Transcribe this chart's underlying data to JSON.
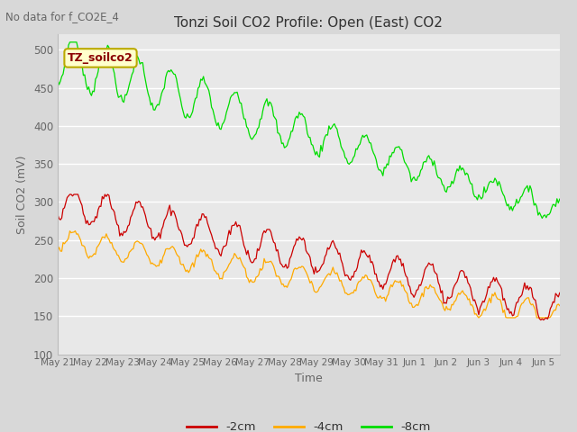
{
  "title": "Tonzi Soil CO2 Profile: Open (East) CO2",
  "top_left_text": "No data for f_CO2E_4",
  "xlabel": "Time",
  "ylabel": "Soil CO2 (mV)",
  "ylim": [
    100,
    520
  ],
  "yticks": [
    100,
    150,
    200,
    250,
    300,
    350,
    400,
    450,
    500
  ],
  "bg_color": "#d8d8d8",
  "plot_bg_color": "#e8e8e8",
  "legend_label_2cm": "-2cm",
  "legend_label_4cm": "-4cm",
  "legend_label_8cm": "-8cm",
  "color_2cm": "#cc0000",
  "color_4cm": "#ffaa00",
  "color_8cm": "#00dd00",
  "annotation_text": "TZ_soilco2",
  "annotation_bg": "#ffffcc",
  "annotation_border": "#bbaa00",
  "figwidth": 6.4,
  "figheight": 4.8,
  "dpi": 100
}
